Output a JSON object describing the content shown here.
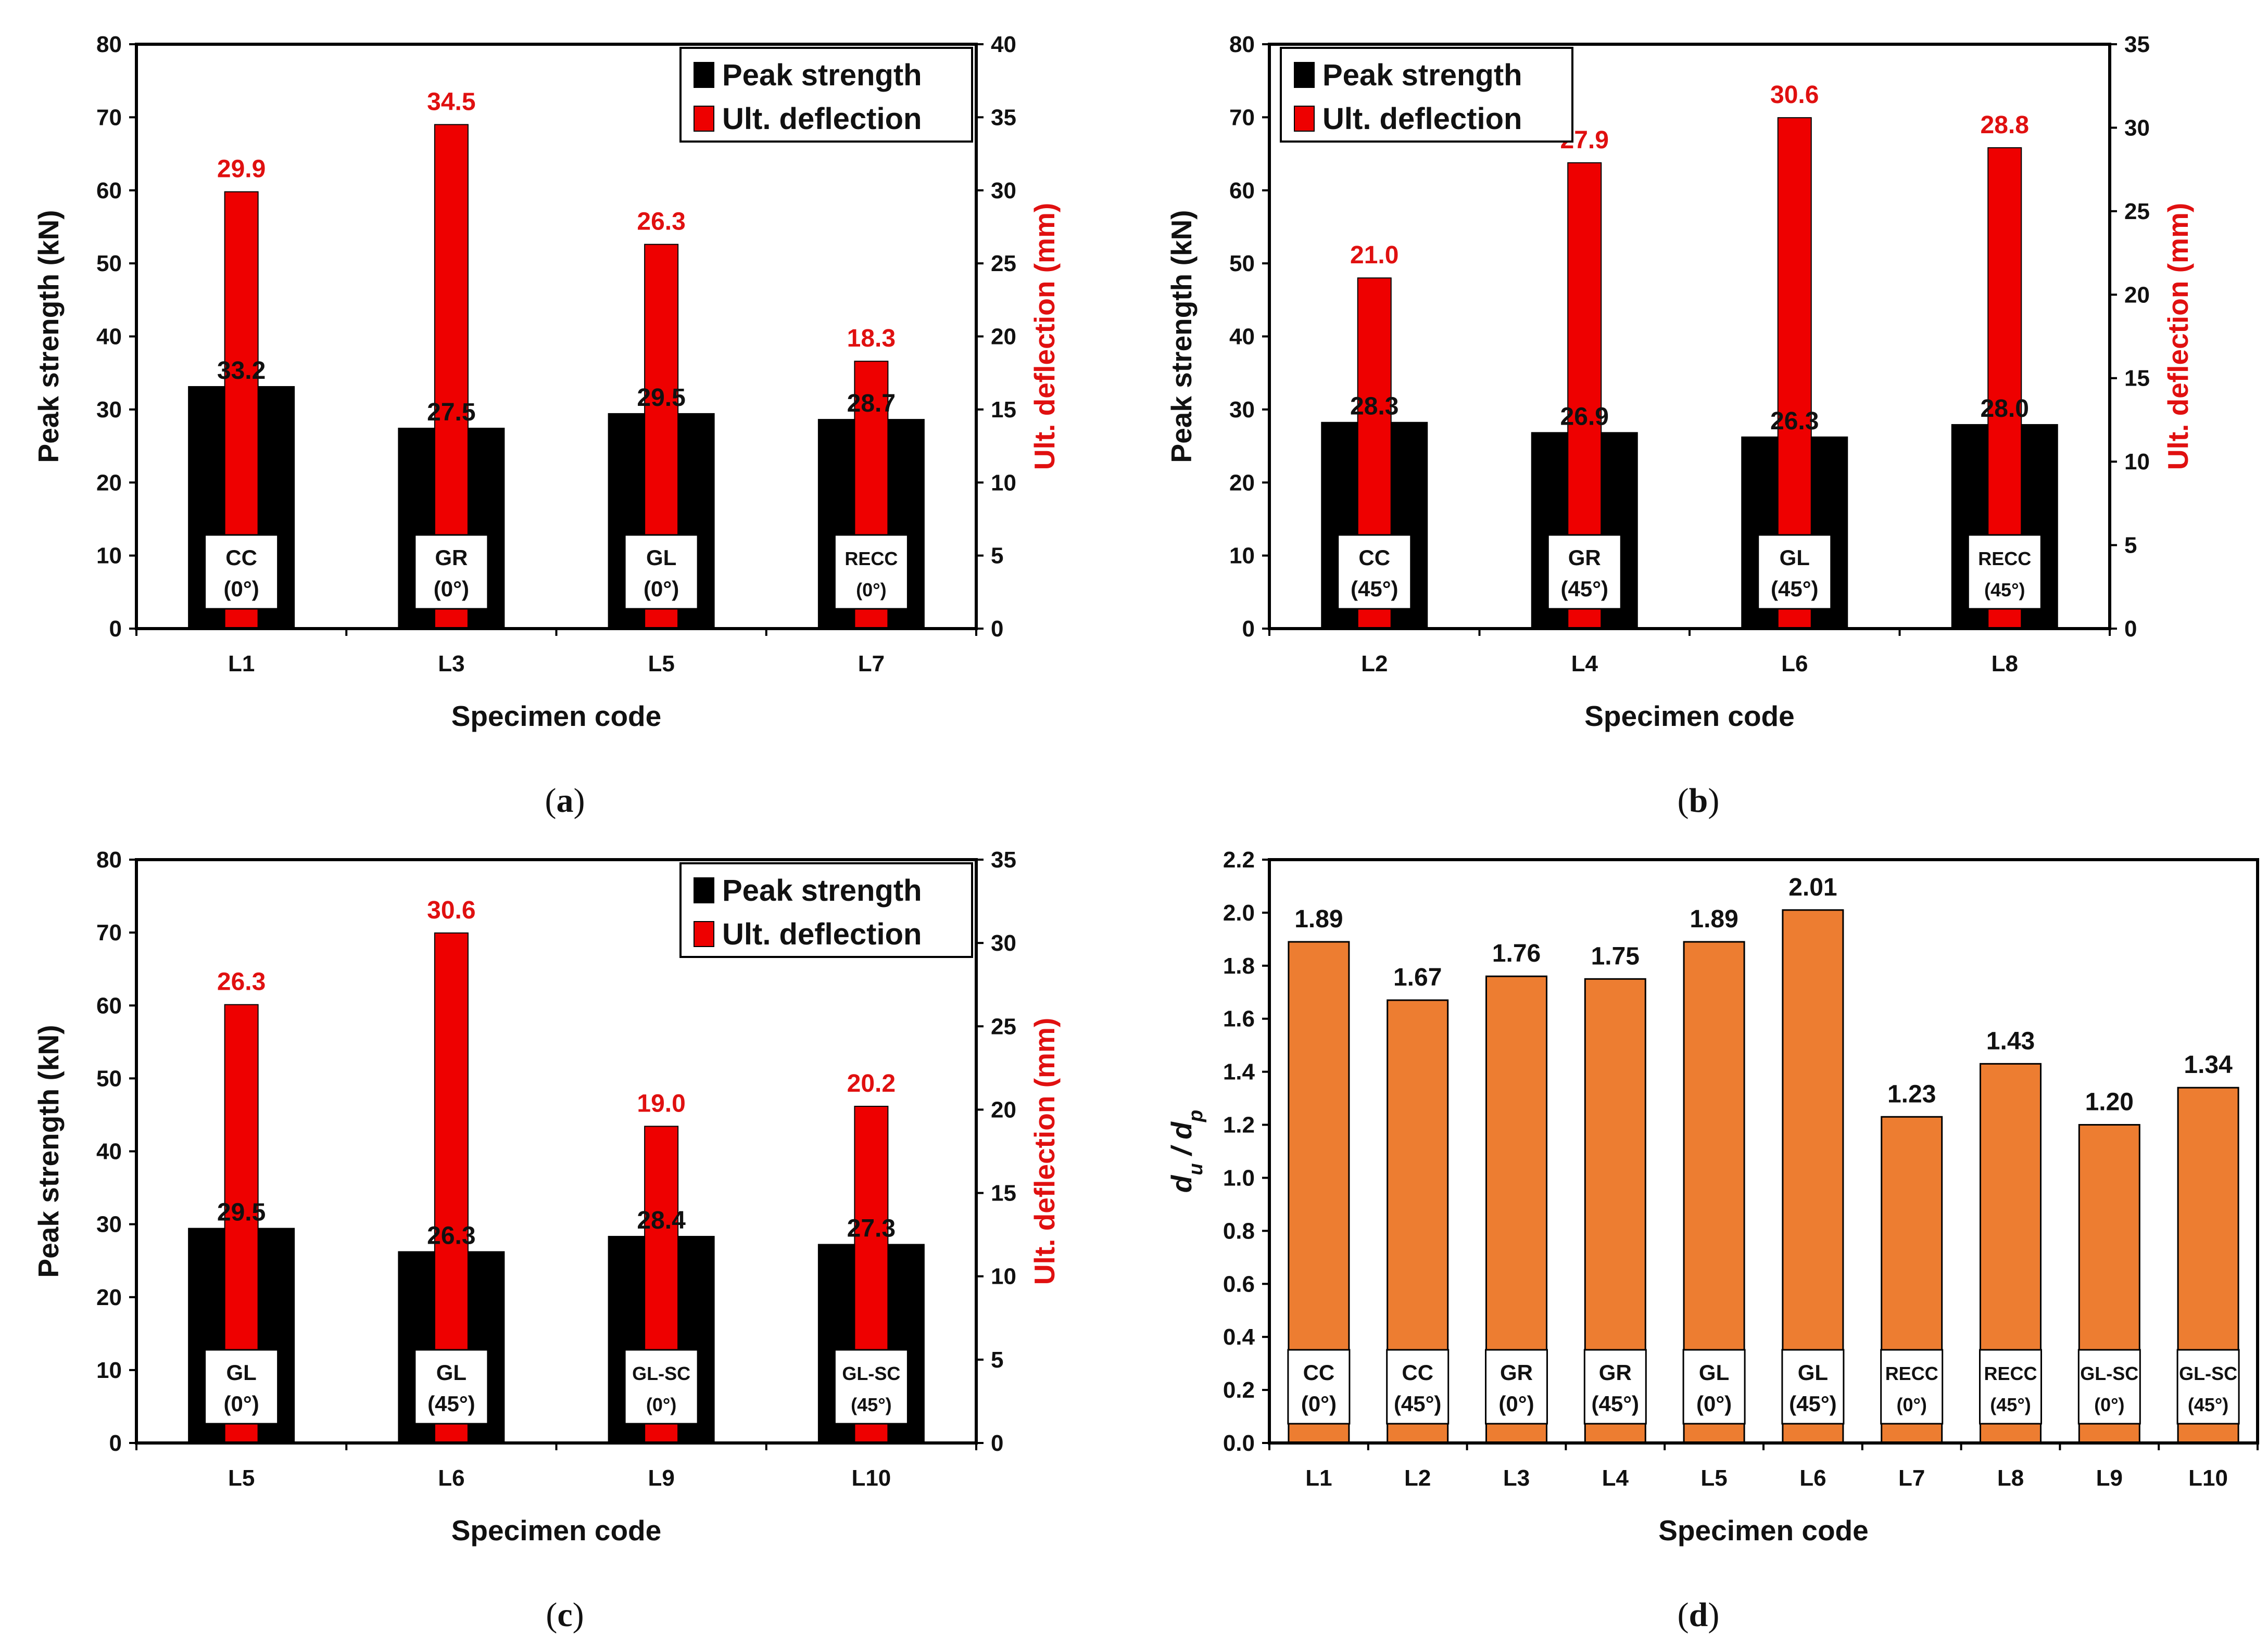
{
  "colors": {
    "black": "#000000",
    "red": "#ee0000",
    "redText": "#e01010",
    "orange": "#ed7d31"
  },
  "chart_data": [
    {
      "panel": "(a)",
      "panel_letter": "a",
      "type": "bar",
      "categories": [
        "L1",
        "L3",
        "L5",
        "L7"
      ],
      "box_labels": [
        [
          "CC",
          "(0°)"
        ],
        [
          "GR",
          "(0°)"
        ],
        [
          "GL",
          "(0°)"
        ],
        [
          "RECC",
          "(0°)"
        ]
      ],
      "series": [
        {
          "name": "Peak strength",
          "axis": "left",
          "color": "#000000",
          "values": [
            33.2,
            27.5,
            29.5,
            28.7
          ],
          "labels": [
            "33.2",
            "27.5",
            "29.5",
            "28.7"
          ]
        },
        {
          "name": "Ult. deflection",
          "axis": "right",
          "color": "#ee0000",
          "values": [
            29.9,
            34.5,
            26.3,
            18.3
          ],
          "labels": [
            "29.9",
            "34.5",
            "26.3",
            "18.3"
          ]
        }
      ],
      "xlabel": "Specimen code",
      "ylabel": "Peak strength (kN)",
      "y2label": "Ult. deflection (mm)",
      "ylim": [
        0,
        80
      ],
      "yticks": [
        "0",
        "10",
        "20",
        "30",
        "40",
        "50",
        "60",
        "70",
        "80"
      ],
      "y2lim": [
        0,
        40
      ],
      "y2ticks": [
        "0",
        "5",
        "10",
        "15",
        "20",
        "25",
        "30",
        "35",
        "40"
      ],
      "legend": "top-right"
    },
    {
      "panel": "(b)",
      "panel_letter": "b",
      "type": "bar",
      "categories": [
        "L2",
        "L4",
        "L6",
        "L8"
      ],
      "box_labels": [
        [
          "CC",
          "(45°)"
        ],
        [
          "GR",
          "(45°)"
        ],
        [
          "GL",
          "(45°)"
        ],
        [
          "RECC",
          "(45°)"
        ]
      ],
      "series": [
        {
          "name": "Peak strength",
          "axis": "left",
          "color": "#000000",
          "values": [
            28.3,
            26.9,
            26.3,
            28.0
          ],
          "labels": [
            "28.3",
            "26.9",
            "26.3",
            "28.0"
          ]
        },
        {
          "name": "Ult. deflection",
          "axis": "right",
          "color": "#ee0000",
          "values": [
            21.0,
            27.9,
            30.6,
            28.8
          ],
          "labels": [
            "21.0",
            "27.9",
            "30.6",
            "28.8"
          ]
        }
      ],
      "xlabel": "Specimen code",
      "ylabel": "Peak strength (kN)",
      "y2label": "Ult. deflection (mm)",
      "ylim": [
        0,
        80
      ],
      "yticks": [
        "0",
        "10",
        "20",
        "30",
        "40",
        "50",
        "60",
        "70",
        "80"
      ],
      "y2lim": [
        0,
        35
      ],
      "y2ticks": [
        "0",
        "5",
        "10",
        "15",
        "20",
        "25",
        "30",
        "35"
      ],
      "legend": "top-left"
    },
    {
      "panel": "(c)",
      "panel_letter": "c",
      "type": "bar",
      "categories": [
        "L5",
        "L6",
        "L9",
        "L10"
      ],
      "box_labels": [
        [
          "GL",
          "(0°)"
        ],
        [
          "GL",
          "(45°)"
        ],
        [
          "GL-SC",
          "(0°)"
        ],
        [
          "GL-SC",
          "(45°)"
        ]
      ],
      "series": [
        {
          "name": "Peak strength",
          "axis": "left",
          "color": "#000000",
          "values": [
            29.5,
            26.3,
            28.4,
            27.3
          ],
          "labels": [
            "29.5",
            "26.3",
            "28.4",
            "27.3"
          ]
        },
        {
          "name": "Ult. deflection",
          "axis": "right",
          "color": "#ee0000",
          "values": [
            26.3,
            30.6,
            19.0,
            20.2
          ],
          "labels": [
            "26.3",
            "30.6",
            "19.0",
            "20.2"
          ]
        }
      ],
      "xlabel": "Specimen code",
      "ylabel": "Peak strength (kN)",
      "y2label": "Ult. deflection (mm)",
      "ylim": [
        0,
        80
      ],
      "yticks": [
        "0",
        "10",
        "20",
        "30",
        "40",
        "50",
        "60",
        "70",
        "80"
      ],
      "y2lim": [
        0,
        35
      ],
      "y2ticks": [
        "0",
        "5",
        "10",
        "15",
        "20",
        "25",
        "30",
        "35"
      ],
      "legend": "top-right"
    },
    {
      "panel": "(d)",
      "panel_letter": "d",
      "type": "bar",
      "categories": [
        "L1",
        "L2",
        "L3",
        "L4",
        "L5",
        "L6",
        "L7",
        "L8",
        "L9",
        "L10"
      ],
      "box_labels": [
        [
          "CC",
          "(0°)"
        ],
        [
          "CC",
          "(45°)"
        ],
        [
          "GR",
          "(0°)"
        ],
        [
          "GR",
          "(45°)"
        ],
        [
          "GL",
          "(0°)"
        ],
        [
          "GL",
          "(45°)"
        ],
        [
          "RECC",
          "(0°)"
        ],
        [
          "RECC",
          "(45°)"
        ],
        [
          "GL-SC",
          "(0°)"
        ],
        [
          "GL-SC",
          "(45°)"
        ]
      ],
      "series": [
        {
          "name": "du/dp",
          "axis": "left",
          "color": "#ed7d31",
          "values": [
            1.89,
            1.67,
            1.76,
            1.75,
            1.89,
            2.01,
            1.23,
            1.43,
            1.2,
            1.34
          ],
          "labels": [
            "1.89",
            "1.67",
            "1.76",
            "1.75",
            "1.89",
            "2.01",
            "1.23",
            "1.43",
            "1.20",
            "1.34"
          ]
        }
      ],
      "xlabel": "Specimen code",
      "ylabel": "du / dp",
      "ylabel_parts": {
        "d1": "d",
        "s1": "u",
        "slash": " / ",
        "d2": "d",
        "s2": "p"
      },
      "ylim": [
        0,
        2.2
      ],
      "yticks": [
        "0.0",
        "0.2",
        "0.4",
        "0.6",
        "0.8",
        "1.0",
        "1.2",
        "1.4",
        "1.6",
        "1.8",
        "2.0",
        "2.2"
      ]
    }
  ]
}
